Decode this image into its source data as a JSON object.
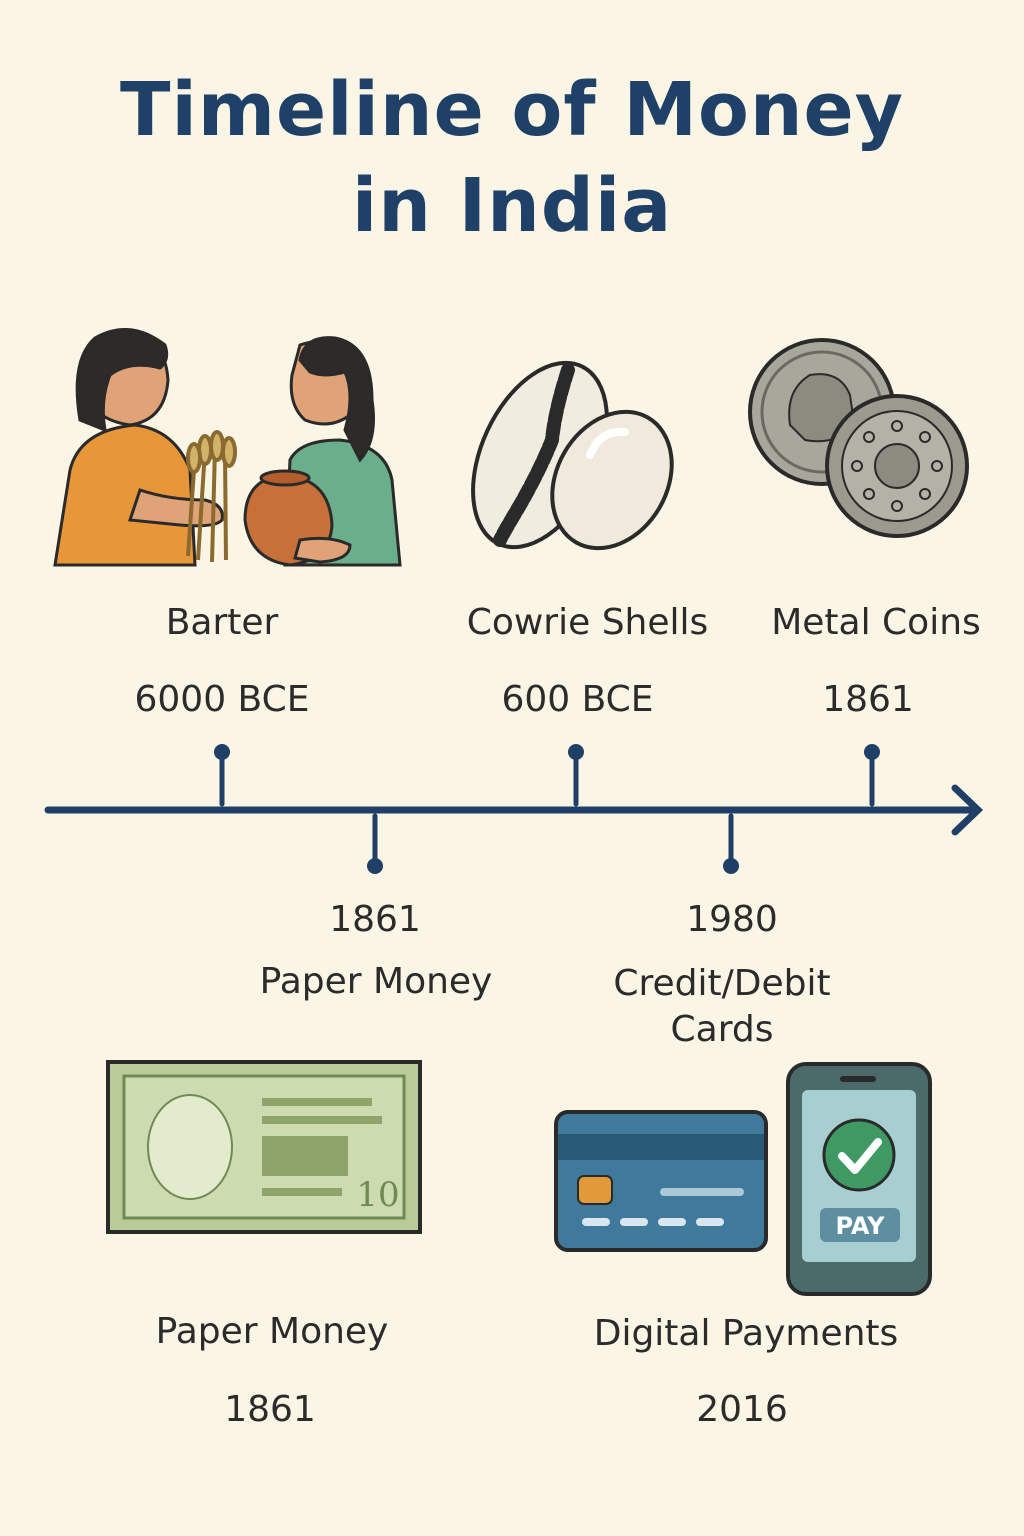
{
  "title": {
    "line1": "Timeline of Money",
    "line2": "in India"
  },
  "top_events": [
    {
      "name": "Barter",
      "date": "6000 BCE"
    },
    {
      "name": "Cowrie Shells",
      "date": "600 BCE"
    },
    {
      "name": "Metal Coins",
      "date": "1861"
    }
  ],
  "mid_events": [
    {
      "date": "1861",
      "name": "Paper Money"
    },
    {
      "date": "1980",
      "name_line1": "Credit/Debit",
      "name_line2": "Cards"
    }
  ],
  "bottom_events": [
    {
      "name": "Paper Money",
      "date": "1861"
    },
    {
      "name": "Digital Payments",
      "date": "2016"
    }
  ],
  "banknote": {
    "denomination": "10"
  },
  "phone": {
    "button_label": "PAY"
  },
  "colors": {
    "background": "#fbf5e6",
    "title": "#1f4168",
    "timeline": "#1f3f66",
    "card": "#3f7a9c",
    "banknote": "#b9cc98",
    "phone": "#4a6b6a",
    "check": "#3e9a62"
  },
  "icons": [
    "barter-people-icon",
    "cowrie-shells-icon",
    "metal-coins-icon",
    "banknote-icon",
    "credit-card-icon",
    "smartphone-pay-icon",
    "checkmark-icon"
  ]
}
